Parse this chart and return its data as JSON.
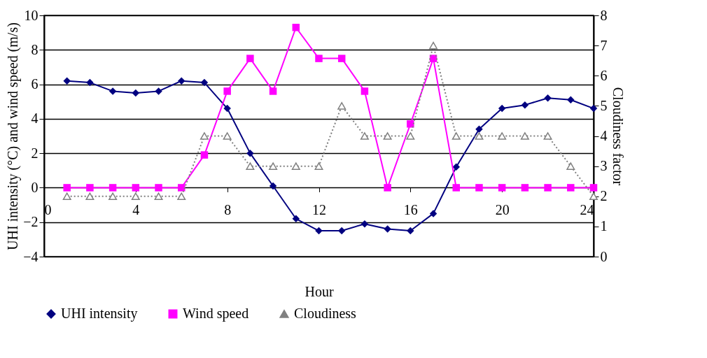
{
  "chart_data": {
    "type": "line",
    "xlabel": "Hour",
    "ylabel": "UHI intensity (°C) and wind speed (m/s)",
    "y2label": "Cloudiness factor",
    "x": [
      1,
      2,
      3,
      4,
      5,
      6,
      7,
      8,
      9,
      10,
      11,
      12,
      13,
      14,
      15,
      16,
      17,
      18,
      19,
      20,
      21,
      22,
      23,
      24
    ],
    "xlim": [
      0,
      24
    ],
    "xticks": [
      0,
      4,
      8,
      12,
      16,
      20,
      24
    ],
    "ylim": [
      -4,
      10
    ],
    "yticks": [
      -4,
      -2,
      0,
      2,
      4,
      6,
      8,
      10
    ],
    "y2lim": [
      0,
      8
    ],
    "y2ticks": [
      0,
      1,
      2,
      3,
      4,
      5,
      6,
      7,
      8
    ],
    "grid": "y",
    "legend": "bottom",
    "series": [
      {
        "name": "UHI intensity",
        "color": "#000080",
        "marker": "diamond",
        "line_style": "solid",
        "values": [
          6.2,
          6.1,
          5.6,
          5.5,
          5.6,
          6.2,
          6.1,
          4.6,
          2.0,
          0.1,
          -1.8,
          -2.5,
          -2.5,
          -2.1,
          -2.4,
          -2.5,
          -1.5,
          1.2,
          3.4,
          4.6,
          4.8,
          5.2,
          5.1,
          4.6
        ]
      },
      {
        "name": "Wind speed",
        "color": "#ff00ff",
        "marker": "square",
        "line_style": "solid",
        "values": [
          0,
          0,
          0,
          0,
          0,
          0,
          1.9,
          5.6,
          7.5,
          5.6,
          9.3,
          7.5,
          7.5,
          5.6,
          0,
          3.7,
          7.5,
          0,
          0,
          0,
          0,
          0,
          0,
          0
        ]
      },
      {
        "name": "Cloudiness",
        "color": "#808080",
        "marker": "triangle",
        "line_style": "dotted",
        "axis": "y2",
        "values": [
          2,
          2,
          2,
          2,
          2,
          2,
          4,
          4,
          3,
          3,
          3,
          3,
          5,
          4,
          4,
          4,
          7,
          4,
          4,
          4,
          4,
          4,
          3,
          2
        ]
      }
    ]
  }
}
